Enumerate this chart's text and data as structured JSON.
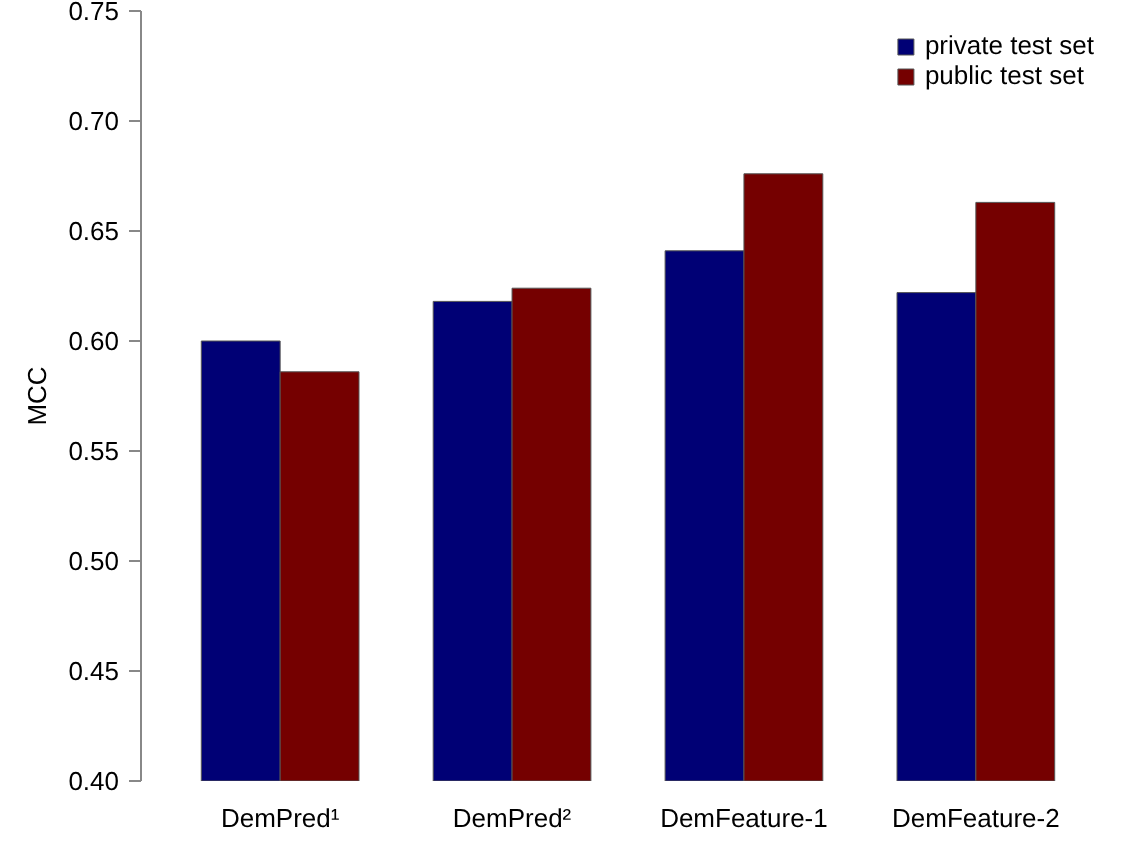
{
  "chart_data": {
    "type": "bar",
    "ylabel": "MCC",
    "categories": [
      "DemPred¹",
      "DemPred²",
      "DemFeature-1",
      "DemFeature-2"
    ],
    "series": [
      {
        "name": "private test set",
        "color": "#000075",
        "values": [
          0.6,
          0.618,
          0.641,
          0.622
        ]
      },
      {
        "name": "public test set",
        "color": "#750000",
        "values": [
          0.586,
          0.624,
          0.676,
          0.663
        ]
      }
    ],
    "ylim": [
      0.4,
      0.75
    ],
    "yticks": [
      {
        "value": 0.4,
        "label": "0.40"
      },
      {
        "value": 0.45,
        "label": "0.45"
      },
      {
        "value": 0.5,
        "label": "0.50"
      },
      {
        "value": 0.55,
        "label": "0.55"
      },
      {
        "value": 0.6,
        "label": "0.60"
      },
      {
        "value": 0.65,
        "label": "0.65"
      },
      {
        "value": 0.7,
        "label": "0.70"
      },
      {
        "value": 0.75,
        "label": "0.75"
      }
    ],
    "grid": false,
    "legend": "top right"
  }
}
